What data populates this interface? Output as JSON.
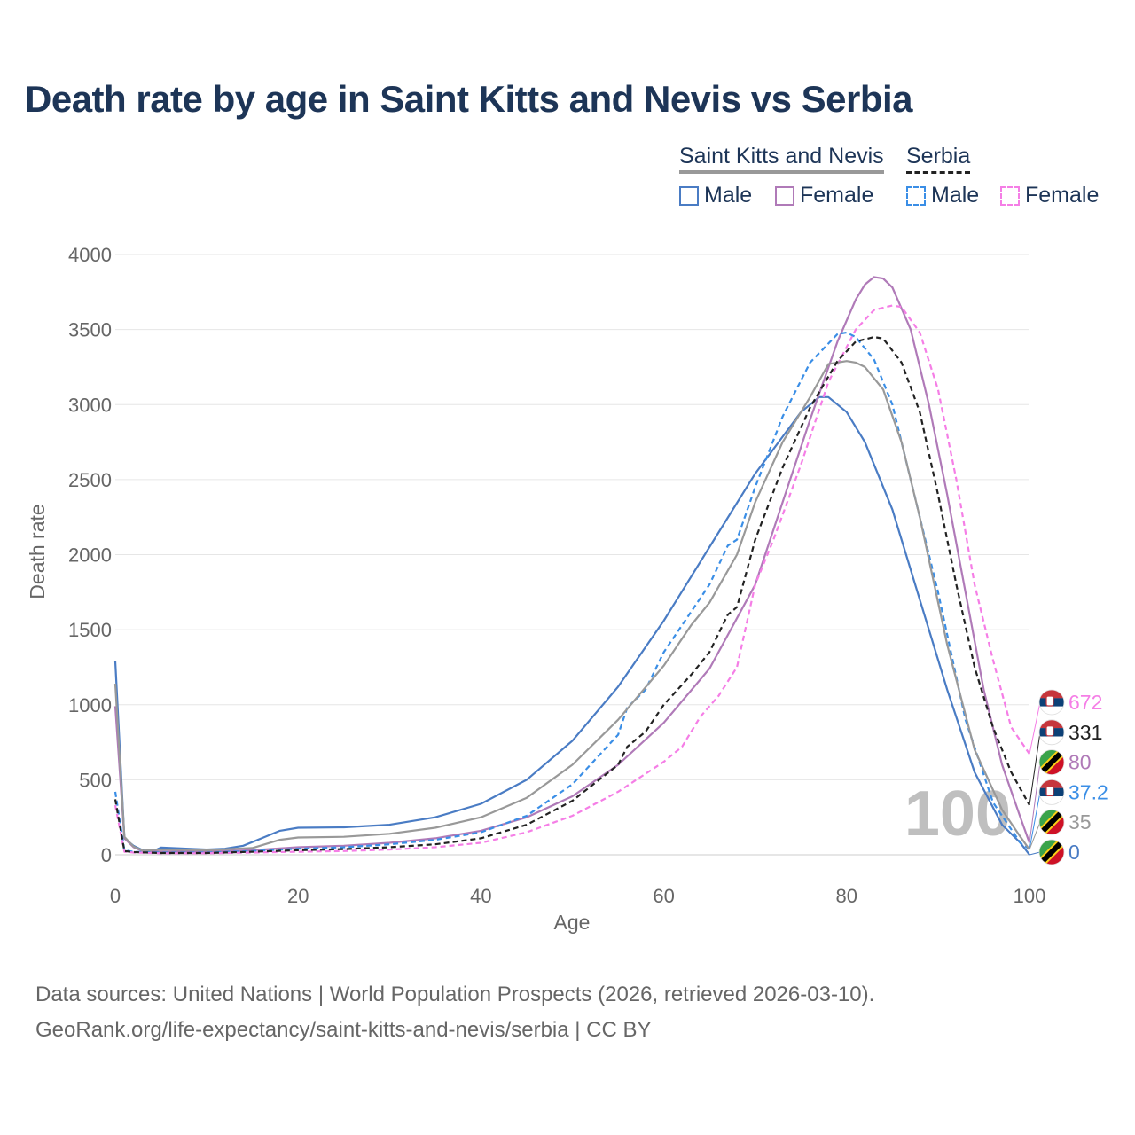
{
  "title": "Death rate by age in Saint Kitts and Nevis vs Serbia",
  "legend": {
    "groups": [
      {
        "name": "Saint Kitts and Nevis",
        "style": "solid",
        "color": "#999999"
      },
      {
        "name": "Serbia",
        "style": "dashed",
        "color": "#222222"
      }
    ],
    "items": [
      {
        "label": "Male",
        "color": "#4a7cc4",
        "style": "solid"
      },
      {
        "label": "Female",
        "color": "#b07ab8",
        "style": "solid"
      },
      {
        "label": "Male",
        "color": "#3a8ee6",
        "style": "dashed"
      },
      {
        "label": "Female",
        "color": "#f57ee6",
        "style": "dashed"
      }
    ]
  },
  "watermark": "100",
  "footer": {
    "sources": "Data sources: United Nations | World Population Prospects (2026, retrieved 2026-03-10).",
    "link": "GeoRank.org/life-expectancy/saint-kitts-and-nevis/serbia | CC BY"
  },
  "chart_data": {
    "type": "line",
    "xlabel": "Age",
    "ylabel": "Death rate",
    "xlim": [
      0,
      100
    ],
    "ylim": [
      0,
      4000
    ],
    "xticks": [
      "0",
      "20",
      "40",
      "60",
      "80",
      "100"
    ],
    "yticks": [
      "0",
      "500",
      "1000",
      "1500",
      "2000",
      "2500",
      "3000",
      "3500",
      "4000"
    ],
    "grid": true,
    "series": [
      {
        "name": "Saint Kitts and Nevis Male",
        "color": "#4a7cc4",
        "style": "solid",
        "end_label": "0",
        "points": [
          [
            0,
            1290
          ],
          [
            1,
            110
          ],
          [
            2,
            60
          ],
          [
            3,
            30
          ],
          [
            4,
            20
          ],
          [
            5,
            48
          ],
          [
            8,
            40
          ],
          [
            10,
            35
          ],
          [
            12,
            40
          ],
          [
            14,
            60
          ],
          [
            16,
            110
          ],
          [
            18,
            160
          ],
          [
            20,
            180
          ],
          [
            25,
            183
          ],
          [
            30,
            200
          ],
          [
            35,
            250
          ],
          [
            40,
            340
          ],
          [
            45,
            500
          ],
          [
            50,
            760
          ],
          [
            55,
            1120
          ],
          [
            60,
            1560
          ],
          [
            65,
            2050
          ],
          [
            70,
            2540
          ],
          [
            75,
            2950
          ],
          [
            77,
            3050
          ],
          [
            78,
            3050
          ],
          [
            80,
            2950
          ],
          [
            82,
            2750
          ],
          [
            85,
            2300
          ],
          [
            88,
            1700
          ],
          [
            91,
            1100
          ],
          [
            94,
            550
          ],
          [
            97,
            200
          ],
          [
            99,
            80
          ],
          [
            100,
            0
          ]
        ]
      },
      {
        "name": "Saint Kitts and Nevis Female",
        "color": "#b07ab8",
        "style": "solid",
        "end_label": "80",
        "points": [
          [
            0,
            990
          ],
          [
            1,
            110
          ],
          [
            2,
            50
          ],
          [
            3,
            25
          ],
          [
            5,
            20
          ],
          [
            10,
            20
          ],
          [
            15,
            30
          ],
          [
            20,
            50
          ],
          [
            25,
            60
          ],
          [
            30,
            80
          ],
          [
            35,
            110
          ],
          [
            40,
            160
          ],
          [
            45,
            250
          ],
          [
            50,
            390
          ],
          [
            55,
            600
          ],
          [
            60,
            880
          ],
          [
            65,
            1240
          ],
          [
            70,
            1800
          ],
          [
            73,
            2350
          ],
          [
            76,
            2900
          ],
          [
            79,
            3420
          ],
          [
            81,
            3700
          ],
          [
            82,
            3800
          ],
          [
            83,
            3850
          ],
          [
            84,
            3840
          ],
          [
            85,
            3780
          ],
          [
            87,
            3500
          ],
          [
            89,
            3000
          ],
          [
            91,
            2400
          ],
          [
            93,
            1750
          ],
          [
            95,
            1100
          ],
          [
            97,
            600
          ],
          [
            99,
            250
          ],
          [
            100,
            80
          ]
        ]
      },
      {
        "name": "Serbia Male",
        "color": "#3a8ee6",
        "style": "dashed",
        "end_label": "37.2",
        "points": [
          [
            0,
            420
          ],
          [
            1,
            30
          ],
          [
            2,
            20
          ],
          [
            5,
            15
          ],
          [
            10,
            15
          ],
          [
            15,
            25
          ],
          [
            20,
            40
          ],
          [
            25,
            50
          ],
          [
            30,
            70
          ],
          [
            35,
            100
          ],
          [
            40,
            150
          ],
          [
            45,
            260
          ],
          [
            50,
            470
          ],
          [
            55,
            800
          ],
          [
            56,
            980
          ],
          [
            58,
            1100
          ],
          [
            60,
            1350
          ],
          [
            65,
            1800
          ],
          [
            67,
            2060
          ],
          [
            68,
            2100
          ],
          [
            70,
            2450
          ],
          [
            73,
            2920
          ],
          [
            76,
            3280
          ],
          [
            79,
            3470
          ],
          [
            80,
            3480
          ],
          [
            81,
            3450
          ],
          [
            83,
            3300
          ],
          [
            85,
            3000
          ],
          [
            87,
            2500
          ],
          [
            90,
            1750
          ],
          [
            93,
            900
          ],
          [
            96,
            350
          ],
          [
            99,
            80
          ],
          [
            100,
            37.2
          ]
        ]
      },
      {
        "name": "Serbia Female",
        "color": "#f57ee6",
        "style": "dashed",
        "end_label": "672",
        "points": [
          [
            0,
            330
          ],
          [
            1,
            20
          ],
          [
            2,
            15
          ],
          [
            5,
            10
          ],
          [
            10,
            10
          ],
          [
            15,
            15
          ],
          [
            20,
            20
          ],
          [
            25,
            25
          ],
          [
            30,
            35
          ],
          [
            35,
            50
          ],
          [
            40,
            80
          ],
          [
            45,
            150
          ],
          [
            50,
            260
          ],
          [
            55,
            420
          ],
          [
            60,
            620
          ],
          [
            62,
            720
          ],
          [
            64,
            920
          ],
          [
            66,
            1060
          ],
          [
            68,
            1250
          ],
          [
            70,
            1800
          ],
          [
            72,
            2100
          ],
          [
            75,
            2600
          ],
          [
            78,
            3150
          ],
          [
            81,
            3500
          ],
          [
            83,
            3630
          ],
          [
            85,
            3660
          ],
          [
            86,
            3650
          ],
          [
            88,
            3480
          ],
          [
            90,
            3100
          ],
          [
            92,
            2500
          ],
          [
            94,
            1800
          ],
          [
            96,
            1300
          ],
          [
            98,
            850
          ],
          [
            100,
            672
          ]
        ]
      },
      {
        "name": "Saint Kitts and Nevis Total",
        "color": "#999999",
        "style": "solid",
        "end_label": "35",
        "points": [
          [
            0,
            1140
          ],
          [
            1,
            120
          ],
          [
            2,
            55
          ],
          [
            3,
            28
          ],
          [
            5,
            35
          ],
          [
            10,
            30
          ],
          [
            15,
            45
          ],
          [
            18,
            100
          ],
          [
            20,
            115
          ],
          [
            25,
            120
          ],
          [
            30,
            140
          ],
          [
            35,
            180
          ],
          [
            40,
            250
          ],
          [
            45,
            380
          ],
          [
            50,
            600
          ],
          [
            55,
            900
          ],
          [
            60,
            1260
          ],
          [
            63,
            1530
          ],
          [
            65,
            1680
          ],
          [
            68,
            2000
          ],
          [
            70,
            2350
          ],
          [
            73,
            2750
          ],
          [
            76,
            3050
          ],
          [
            78,
            3270
          ],
          [
            80,
            3290
          ],
          [
            81,
            3280
          ],
          [
            82,
            3250
          ],
          [
            84,
            3100
          ],
          [
            86,
            2750
          ],
          [
            88,
            2250
          ],
          [
            91,
            1400
          ],
          [
            94,
            700
          ],
          [
            97,
            300
          ],
          [
            99,
            120
          ],
          [
            100,
            35
          ]
        ]
      },
      {
        "name": "Serbia Total",
        "color": "#222222",
        "style": "dashed",
        "end_label": "331",
        "points": [
          [
            0,
            370
          ],
          [
            1,
            25
          ],
          [
            2,
            18
          ],
          [
            5,
            12
          ],
          [
            10,
            12
          ],
          [
            15,
            20
          ],
          [
            20,
            30
          ],
          [
            25,
            38
          ],
          [
            30,
            50
          ],
          [
            35,
            70
          ],
          [
            40,
            110
          ],
          [
            45,
            200
          ],
          [
            50,
            360
          ],
          [
            55,
            600
          ],
          [
            56,
            720
          ],
          [
            58,
            820
          ],
          [
            60,
            1000
          ],
          [
            63,
            1200
          ],
          [
            65,
            1350
          ],
          [
            67,
            1600
          ],
          [
            68,
            1650
          ],
          [
            70,
            2100
          ],
          [
            73,
            2580
          ],
          [
            76,
            2980
          ],
          [
            79,
            3290
          ],
          [
            81,
            3420
          ],
          [
            83,
            3450
          ],
          [
            84,
            3440
          ],
          [
            86,
            3280
          ],
          [
            88,
            2950
          ],
          [
            90,
            2400
          ],
          [
            92,
            1800
          ],
          [
            94,
            1250
          ],
          [
            96,
            850
          ],
          [
            98,
            550
          ],
          [
            100,
            331
          ]
        ]
      }
    ]
  }
}
